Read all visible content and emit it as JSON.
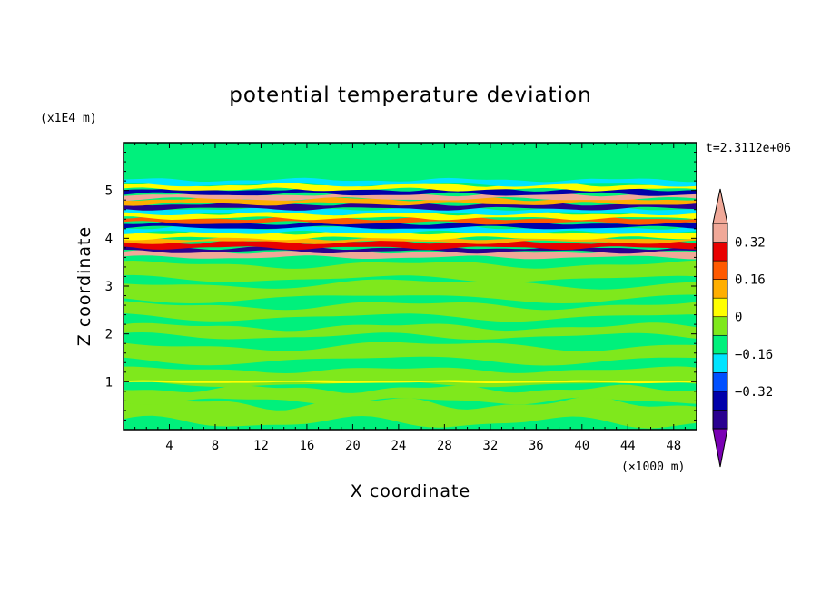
{
  "chart_data": {
    "type": "heatmap",
    "title": "potential temperature deviation",
    "time_label": "t=2.3112e+06",
    "xlabel": "X coordinate",
    "ylabel": "Z coordinate",
    "x_unit": "(×1000 m)",
    "y_unit": "(x1E4 m)",
    "xlim": [
      0,
      50
    ],
    "ylim": [
      0,
      6
    ],
    "x_ticks": [
      4,
      8,
      12,
      16,
      20,
      24,
      28,
      32,
      36,
      40,
      44,
      48
    ],
    "y_ticks": [
      1,
      2,
      3,
      4,
      5
    ],
    "grid": false,
    "colorbar": {
      "levels": [
        -0.48,
        -0.4,
        -0.32,
        -0.24,
        -0.16,
        -0.08,
        0,
        0.08,
        0.16,
        0.24,
        0.32,
        0.4
      ],
      "labels": [
        "0.32",
        "0.16",
        "0",
        "−0.16",
        "−0.32"
      ],
      "label_values": [
        0.32,
        0.16,
        0,
        -0.16,
        -0.32
      ],
      "colors": [
        "#7a00b4",
        "#2a0090",
        "#0000aa",
        "#0050ff",
        "#00e4ff",
        "#00f07c",
        "#7fe81c",
        "#ffff00",
        "#ffae00",
        "#ff5a00",
        "#e80000",
        "#f0a898"
      ],
      "extend": "both"
    },
    "bands": [
      {
        "z": [
          0.0,
          1.0
        ],
        "level": "0 to 0.08",
        "note": "alternating weak positive/zero patches"
      },
      {
        "z": [
          1.0,
          3.6
        ],
        "level": "0 to 0.08",
        "note": "mostly light green with elongated zero patches"
      },
      {
        "z": [
          3.6,
          5.2
        ],
        "level": "-0.48 to 0.48",
        "note": "strong alternating positive/negative layers"
      },
      {
        "z": [
          5.2,
          6.0
        ],
        "level": "-0.08 to 0.08",
        "note": "near zero"
      }
    ]
  }
}
